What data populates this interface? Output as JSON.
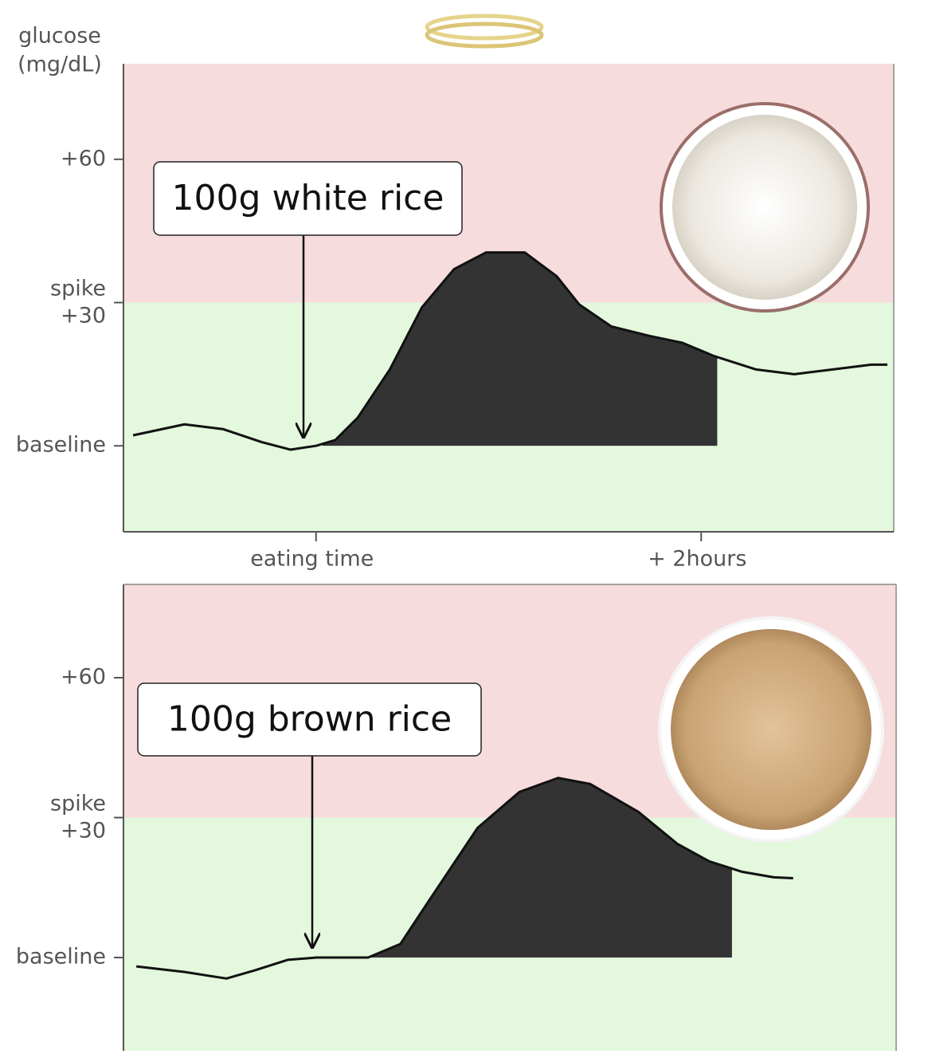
{
  "chart_data": [
    {
      "type": "line",
      "y_label": [
        "glucose",
        "(mg/dL)"
      ],
      "annotation": "100g white rice",
      "xlim": [
        -60,
        180
      ],
      "ylim": [
        -18,
        80
      ],
      "xticks": [
        {
          "value": 0,
          "label": "eating time"
        },
        {
          "value": 120,
          "label": "+ 2hours"
        }
      ],
      "yticks": [
        {
          "value": 0,
          "label": "baseline"
        },
        {
          "value": 30,
          "label": "spike\n+30"
        },
        {
          "value": 60,
          "label": "+60"
        }
      ],
      "x": [
        -57,
        -41,
        -29,
        -17,
        -8,
        0,
        6,
        13,
        23,
        33,
        43,
        53,
        65,
        75,
        82,
        92,
        104,
        114,
        124,
        137,
        149,
        161,
        173,
        178
      ],
      "values": [
        2.2,
        4.5,
        3.5,
        0.8,
        -0.8,
        0,
        1.2,
        5.9,
        16,
        29,
        37,
        40.5,
        40.5,
        35.5,
        29.6,
        25,
        23,
        21.6,
        18.8,
        16,
        15,
        16,
        17,
        17
      ],
      "shaded_x": [
        2,
        125
      ],
      "color": "#111111",
      "fill": "#333333"
    },
    {
      "type": "line",
      "annotation": "100g brown rice",
      "xlim": [
        -60,
        180
      ],
      "ylim": [
        -20,
        80
      ],
      "yticks": [
        {
          "value": 0,
          "label": "baseline"
        },
        {
          "value": 30,
          "label": "spike\n+30"
        },
        {
          "value": 60,
          "label": "+60"
        }
      ],
      "x": [
        -56,
        -41,
        -28,
        -19,
        -9,
        0,
        16,
        26,
        35,
        50,
        63,
        75,
        85,
        100,
        112,
        122,
        132,
        142,
        148
      ],
      "values": [
        -1.9,
        -3.1,
        -4.5,
        -2.7,
        -0.5,
        0,
        0,
        2.9,
        12.3,
        27.8,
        35.5,
        38.5,
        37.2,
        31.2,
        24.4,
        20.6,
        18.4,
        17.2,
        17
      ],
      "shaded_x": [
        16,
        129
      ],
      "color": "#111111",
      "fill": "#333333"
    }
  ]
}
